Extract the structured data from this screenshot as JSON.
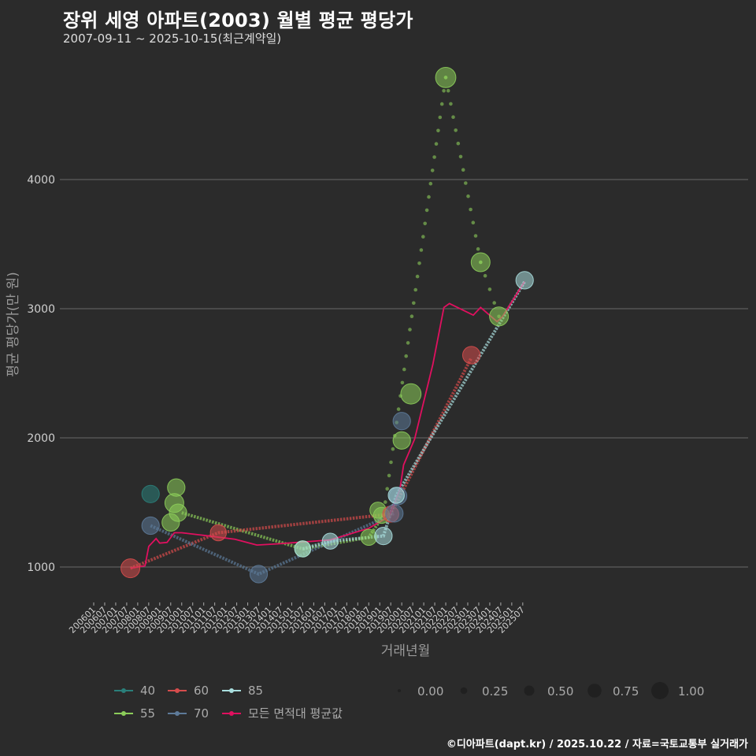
{
  "chart_data": {
    "type": "scatter+line",
    "title": "장위 세영 아파트(2003) 월별 평균 평당가",
    "subtitle": "2007-09-11 ~ 2025-10-15(최근계약일)",
    "xlabel": "거래년월",
    "ylabel": "평균 평당가(만 원)",
    "caption": "©디아파트(dapt.kr) / 2025.10.22 / 자료=국토교통부 실거래가",
    "x_ticks": [
      "200601",
      "200607",
      "200701",
      "200707",
      "200801",
      "200807",
      "200901",
      "200907",
      "201001",
      "201007",
      "201101",
      "201107",
      "201201",
      "201207",
      "201301",
      "201307",
      "201401",
      "201407",
      "201501",
      "201507",
      "201601",
      "201607",
      "201701",
      "201707",
      "201801",
      "201807",
      "201901",
      "201907",
      "202001",
      "202007",
      "202101",
      "202107",
      "202201",
      "202207",
      "202301",
      "202307",
      "202401",
      "202407",
      "202501",
      "202507"
    ],
    "y_ticks": [
      1000,
      2000,
      3000,
      4000
    ],
    "ylim": [
      780,
      4950
    ],
    "colors": {
      "40": "#2a7f7a",
      "55": "#8ccd5a",
      "60": "#d64c4c",
      "70": "#5d7a99",
      "85": "#a9dede",
      "all": "#e0105f"
    },
    "series": [
      {
        "name": "40",
        "color": "#2a7f7a",
        "points": [
          {
            "x": "2008-08",
            "y": 1565,
            "size": 0.45
          }
        ],
        "line": []
      },
      {
        "name": "55",
        "color": "#8ccd5a",
        "points": [
          {
            "x": "2009-07",
            "y": 1345,
            "size": 0.45
          },
          {
            "x": "2009-09",
            "y": 1495,
            "size": 0.5
          },
          {
            "x": "2009-10",
            "y": 1615,
            "size": 0.45
          },
          {
            "x": "2009-11",
            "y": 1420,
            "size": 0.45
          },
          {
            "x": "2015-07",
            "y": 1140,
            "size": 0.4
          },
          {
            "x": "2018-07",
            "y": 1230,
            "size": 0.4
          },
          {
            "x": "2018-12",
            "y": 1440,
            "size": 0.4
          },
          {
            "x": "2019-02",
            "y": 1400,
            "size": 0.4
          },
          {
            "x": "2020-01",
            "y": 1980,
            "size": 0.45
          },
          {
            "x": "2020-06",
            "y": 2340,
            "size": 0.55
          },
          {
            "x": "2022-01",
            "y": 4790,
            "size": 0.55
          },
          {
            "x": "2023-08",
            "y": 3360,
            "size": 0.5
          },
          {
            "x": "2024-06",
            "y": 2940,
            "size": 0.5
          }
        ],
        "line": [
          {
            "x": "2010-01",
            "y": 1420
          },
          {
            "x": "2015-07",
            "y": 1140
          },
          {
            "x": "2018-07",
            "y": 1230
          },
          {
            "x": "2019-03",
            "y": 1400
          }
        ],
        "trend": [
          {
            "x": "2019-03",
            "y": 1400
          },
          {
            "x": "2022-01",
            "y": 4790
          },
          {
            "x": "2023-08",
            "y": 3360
          },
          {
            "x": "2024-06",
            "y": 2940
          }
        ]
      },
      {
        "name": "60",
        "color": "#d64c4c",
        "points": [
          {
            "x": "2007-09",
            "y": 990,
            "size": 0.5
          },
          {
            "x": "2011-09",
            "y": 1265,
            "size": 0.4
          },
          {
            "x": "2019-07",
            "y": 1410,
            "size": 0.4
          },
          {
            "x": "2023-03",
            "y": 2640,
            "size": 0.45
          }
        ],
        "line": [
          {
            "x": "2007-09",
            "y": 990
          },
          {
            "x": "2011-09",
            "y": 1265
          },
          {
            "x": "2019-07",
            "y": 1410
          },
          {
            "x": "2023-03",
            "y": 2620
          }
        ]
      },
      {
        "name": "70",
        "color": "#5d7a99",
        "points": [
          {
            "x": "2008-08",
            "y": 1320,
            "size": 0.45
          },
          {
            "x": "2013-07",
            "y": 945,
            "size": 0.45
          },
          {
            "x": "2019-09",
            "y": 1415,
            "size": 0.45
          },
          {
            "x": "2019-11",
            "y": 1550,
            "size": 0.45
          },
          {
            "x": "2020-01",
            "y": 2130,
            "size": 0.45
          }
        ],
        "line": [
          {
            "x": "2008-08",
            "y": 1320
          },
          {
            "x": "2013-07",
            "y": 945
          },
          {
            "x": "2019-09",
            "y": 1415
          }
        ]
      },
      {
        "name": "85",
        "color": "#a9dede",
        "points": [
          {
            "x": "2015-07",
            "y": 1140,
            "size": 0.4
          },
          {
            "x": "2016-10",
            "y": 1200,
            "size": 0.4
          },
          {
            "x": "2019-03",
            "y": 1240,
            "size": 0.45
          },
          {
            "x": "2019-10",
            "y": 1555,
            "size": 0.4
          },
          {
            "x": "2025-08",
            "y": 3220,
            "size": 0.45
          }
        ],
        "line": [
          {
            "x": "2015-07",
            "y": 1140
          },
          {
            "x": "2016-10",
            "y": 1200
          },
          {
            "x": "2019-03",
            "y": 1240
          },
          {
            "x": "2019-10",
            "y": 1555
          },
          {
            "x": "2025-08",
            "y": 3210
          }
        ]
      },
      {
        "name": "모든 면적대 평균값",
        "color": "#e0105f",
        "line": [
          {
            "x": "2007-09",
            "y": 990
          },
          {
            "x": "2008-05",
            "y": 1010
          },
          {
            "x": "2008-07",
            "y": 1160
          },
          {
            "x": "2008-11",
            "y": 1220
          },
          {
            "x": "2009-01",
            "y": 1185
          },
          {
            "x": "2009-05",
            "y": 1190
          },
          {
            "x": "2009-09",
            "y": 1265
          },
          {
            "x": "2010-01",
            "y": 1265
          },
          {
            "x": "2011-01",
            "y": 1245
          },
          {
            "x": "2012-06",
            "y": 1215
          },
          {
            "x": "2013-06",
            "y": 1170
          },
          {
            "x": "2014-06",
            "y": 1180
          },
          {
            "x": "2016-10",
            "y": 1210
          },
          {
            "x": "2018-07",
            "y": 1300
          },
          {
            "x": "2019-06",
            "y": 1390
          },
          {
            "x": "2019-12",
            "y": 1600
          },
          {
            "x": "2020-02",
            "y": 1790
          },
          {
            "x": "2020-08",
            "y": 1990
          },
          {
            "x": "2021-06",
            "y": 2570
          },
          {
            "x": "2021-12",
            "y": 3010
          },
          {
            "x": "2022-03",
            "y": 3040
          },
          {
            "x": "2023-04",
            "y": 2950
          },
          {
            "x": "2023-08",
            "y": 3010
          },
          {
            "x": "2024-05",
            "y": 2900
          },
          {
            "x": "2024-08",
            "y": 2940
          },
          {
            "x": "2025-08",
            "y": 3210
          }
        ]
      }
    ],
    "legend": {
      "series_labels": [
        "40",
        "55",
        "60",
        "70",
        "85",
        "모든 면적대 평균값"
      ],
      "size_labels": [
        "0.00",
        "0.25",
        "0.50",
        "0.75",
        "1.00"
      ],
      "size_values": [
        0,
        0.25,
        0.5,
        0.75,
        1.0
      ]
    }
  }
}
